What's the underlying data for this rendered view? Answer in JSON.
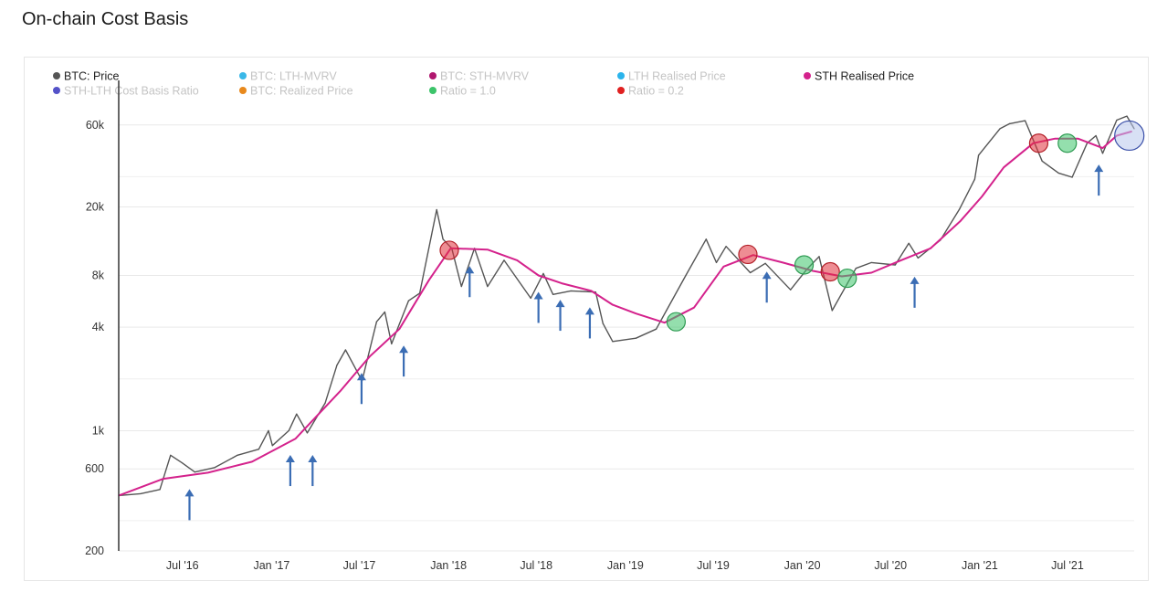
{
  "page_title": "On-chain Cost Basis",
  "colors": {
    "price": "#555555",
    "sth_realised": "#d4228c",
    "arrow": "#3b6db4",
    "red_marker": "#e0303a",
    "green_marker": "#3cc46a",
    "blue_marker": "#5a6cc8"
  },
  "legend": [
    {
      "label": "BTC: Price",
      "color": "#555555",
      "active": true
    },
    {
      "label": "BTC: LTH-MVRV",
      "color": "#3ab8e8",
      "active": false
    },
    {
      "label": "BTC: STH-MVRV",
      "color": "#b0166e",
      "active": false
    },
    {
      "label": "LTH Realised Price",
      "color": "#2bb4ec",
      "active": false
    },
    {
      "label": "STH Realised Price",
      "color": "#d4228c",
      "active": true
    },
    {
      "label": "STH-LTH Cost Basis Ratio",
      "color": "#5452c8",
      "active": false
    },
    {
      "label": "BTC: Realized Price",
      "color": "#e8891c",
      "active": false
    },
    {
      "label": "Ratio = 1.0",
      "color": "#3cc46a",
      "active": false
    },
    {
      "label": "Ratio = 0.2",
      "color": "#e02020",
      "active": false
    }
  ],
  "chart_data": {
    "type": "line",
    "title": "On-chain Cost Basis",
    "x_tick_labels": [
      "Jul '16",
      "Jan '17",
      "Jul '17",
      "Jan '18",
      "Jul '18",
      "Jan '19",
      "Jul '19",
      "Jan '20",
      "Jul '20",
      "Jan '21",
      "Jul '21"
    ],
    "y_tick_labels": [
      "60k",
      "20k",
      "8k",
      "4k",
      "1k",
      "600",
      "200"
    ],
    "y_scale": "log",
    "ylim": [
      200,
      100000
    ],
    "xlim": [
      "2016-03-01",
      "2021-11-25"
    ],
    "grid": "horizontal",
    "legend_position": "top",
    "series": [
      {
        "name": "BTC: Price",
        "x": [
          "2016-03-01",
          "2016-04-15",
          "2016-05-25",
          "2016-06-16",
          "2016-07-10",
          "2016-08-05",
          "2016-09-15",
          "2016-11-01",
          "2016-12-15",
          "2017-01-04",
          "2017-01-12",
          "2017-02-15",
          "2017-03-03",
          "2017-03-25",
          "2017-05-01",
          "2017-05-25",
          "2017-06-12",
          "2017-07-16",
          "2017-08-15",
          "2017-09-01",
          "2017-09-15",
          "2017-10-20",
          "2017-11-12",
          "2017-12-17",
          "2017-12-30",
          "2018-01-17",
          "2018-02-06",
          "2018-03-05",
          "2018-04-01",
          "2018-05-05",
          "2018-06-29",
          "2018-07-25",
          "2018-08-14",
          "2018-09-20",
          "2018-11-10",
          "2018-11-25",
          "2018-12-15",
          "2019-02-01",
          "2019-03-15",
          "2019-04-05",
          "2019-05-15",
          "2019-06-26",
          "2019-07-17",
          "2019-08-06",
          "2019-09-25",
          "2019-10-26",
          "2019-12-17",
          "2020-01-20",
          "2020-02-14",
          "2020-03-12",
          "2020-04-30",
          "2020-06-01",
          "2020-07-20",
          "2020-08-17",
          "2020-09-05",
          "2020-10-21",
          "2020-11-30",
          "2020-12-31",
          "2021-01-08",
          "2021-02-21",
          "2021-03-13",
          "2021-04-14",
          "2021-05-19",
          "2021-06-22",
          "2021-07-20",
          "2021-08-20",
          "2021-09-07",
          "2021-09-21",
          "2021-10-20",
          "2021-11-10",
          "2021-11-25"
        ],
        "values": [
          420,
          430,
          455,
          720,
          650,
          575,
          610,
          720,
          780,
          1000,
          820,
          1000,
          1250,
          970,
          1450,
          2400,
          2950,
          1950,
          4300,
          4900,
          3200,
          5700,
          6300,
          19300,
          13000,
          11500,
          6900,
          11500,
          6900,
          9800,
          5900,
          8200,
          6200,
          6500,
          6400,
          4200,
          3300,
          3450,
          3900,
          5000,
          8000,
          13000,
          9500,
          11800,
          8300,
          9400,
          6600,
          8700,
          10300,
          5000,
          8800,
          9500,
          9200,
          12300,
          10100,
          12800,
          19500,
          29000,
          40000,
          57000,
          61000,
          63500,
          37000,
          31500,
          29800,
          47000,
          52000,
          41000,
          64000,
          67500,
          57000
        ]
      },
      {
        "name": "STH Realised Price",
        "x": [
          "2016-03-01",
          "2016-06-01",
          "2016-09-01",
          "2016-12-01",
          "2017-03-01",
          "2017-06-01",
          "2017-08-01",
          "2017-10-01",
          "2017-12-01",
          "2018-01-15",
          "2018-04-01",
          "2018-06-01",
          "2018-07-15",
          "2018-09-01",
          "2018-11-01",
          "2018-12-15",
          "2019-02-01",
          "2019-04-01",
          "2019-06-01",
          "2019-08-01",
          "2019-10-01",
          "2019-12-01",
          "2020-02-01",
          "2020-04-01",
          "2020-06-01",
          "2020-08-01",
          "2020-10-01",
          "2020-12-01",
          "2021-01-15",
          "2021-03-01",
          "2021-05-01",
          "2021-06-15",
          "2021-08-01",
          "2021-09-21",
          "2021-10-20",
          "2021-11-20"
        ],
        "values": [
          420,
          525,
          570,
          660,
          900,
          1700,
          2700,
          3900,
          7500,
          11500,
          11300,
          9800,
          8000,
          7200,
          6500,
          5400,
          4800,
          4250,
          5200,
          9000,
          10500,
          9500,
          8500,
          7900,
          8300,
          9800,
          11500,
          16500,
          23000,
          34000,
          47000,
          50000,
          50000,
          44000,
          52000,
          55000
        ]
      }
    ],
    "annotations": {
      "ratio_0_2_markers": [
        [
          "2018-01-12",
          11200
        ],
        [
          "2019-09-20",
          10600
        ],
        [
          "2020-03-08",
          8400
        ],
        [
          "2021-05-12",
          47000
        ]
      ],
      "ratio_1_0_markers": [
        [
          "2019-04-25",
          4300
        ],
        [
          "2020-01-14",
          9200
        ],
        [
          "2020-04-12",
          7700
        ],
        [
          "2021-07-10",
          47000
        ]
      ],
      "current_marker": [
        [
          "2021-11-15",
          52000
        ]
      ],
      "arrow_markers": [
        "2016-07-25",
        "2017-02-18",
        "2017-04-05",
        "2017-07-15",
        "2017-10-10",
        "2018-02-23",
        "2018-07-15",
        "2018-08-29",
        "2018-10-29",
        "2019-10-29",
        "2020-08-29",
        "2021-09-13"
      ]
    }
  }
}
